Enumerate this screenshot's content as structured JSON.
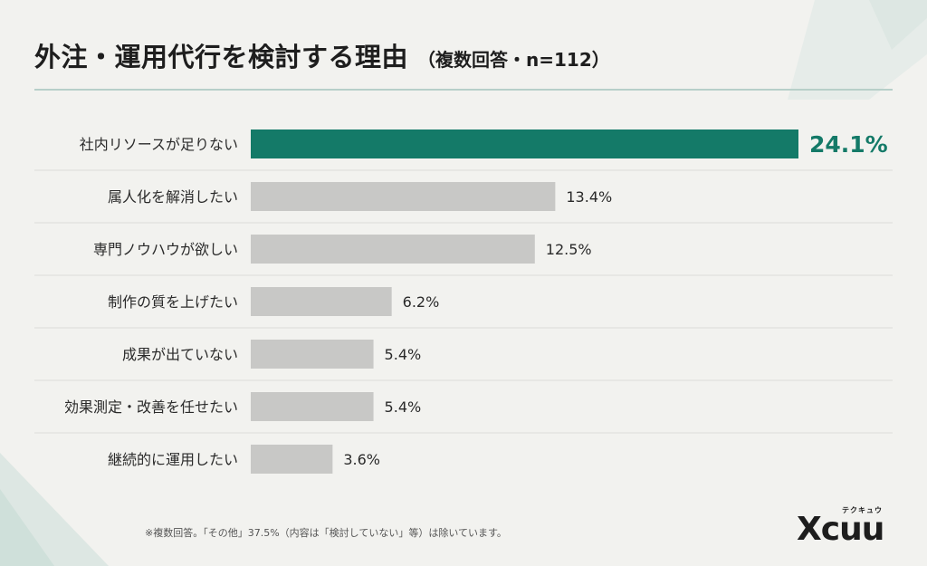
{
  "title": "外注・運用代行を検討する理由",
  "subtitle": "（複数回答・n=112）",
  "footnote": "※複数回答。「その他」37.5%（内容は「検討していない」等）は除いています。",
  "logo": {
    "text": "Xcuu",
    "kana": "テクキュウ"
  },
  "colors": {
    "highlight": "#147a68",
    "bar": "#c8c8c6",
    "divider": "#dcdcd8",
    "title_rule": "#b7cfc9"
  },
  "chart_data": {
    "type": "bar",
    "orientation": "horizontal",
    "unit": "%",
    "categories": [
      "社内リソースが足りない",
      "属人化を解消したい",
      "専門ノウハウが欲しい",
      "制作の質を上げたい",
      "成果が出ていない",
      "効果測定・改善を任せたい",
      "継続的に運用したい"
    ],
    "values": [
      24.1,
      13.4,
      12.5,
      6.2,
      5.4,
      5.4,
      3.6
    ],
    "value_labels": [
      "24.1%",
      "13.4%",
      "12.5%",
      "6.2%",
      "5.4%",
      "5.4%",
      "3.6%"
    ],
    "highlight_index": 0,
    "xlim": [
      0,
      24.1
    ],
    "grid": false
  }
}
